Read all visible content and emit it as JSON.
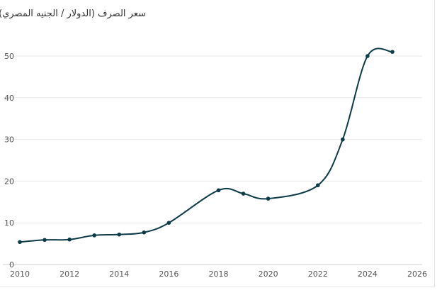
{
  "chart_data": {
    "type": "line",
    "title": "سعر الصرف (الدولار / الجنيه المصري)",
    "xlabel": "",
    "ylabel": "",
    "xlim": [
      2010,
      2026
    ],
    "ylim": [
      0,
      55
    ],
    "x_ticks": [
      2010,
      2012,
      2014,
      2016,
      2018,
      2020,
      2022,
      2024,
      2026
    ],
    "y_ticks": [
      0,
      10,
      20,
      30,
      40,
      50
    ],
    "grid": true,
    "legend": "none",
    "colors": {
      "line": "#0d3b47",
      "marker": "#0d3b47"
    },
    "series": [
      {
        "x": [
          2010,
          2011,
          2012,
          2013,
          2014,
          2015,
          2016,
          2018,
          2019,
          2020,
          2022,
          2023,
          2024,
          2025
        ],
        "values": [
          5.4,
          5.9,
          6.0,
          7.0,
          7.2,
          7.7,
          10.0,
          17.8,
          17.0,
          15.8,
          19.0,
          30.0,
          50.0,
          51.0
        ]
      }
    ]
  }
}
